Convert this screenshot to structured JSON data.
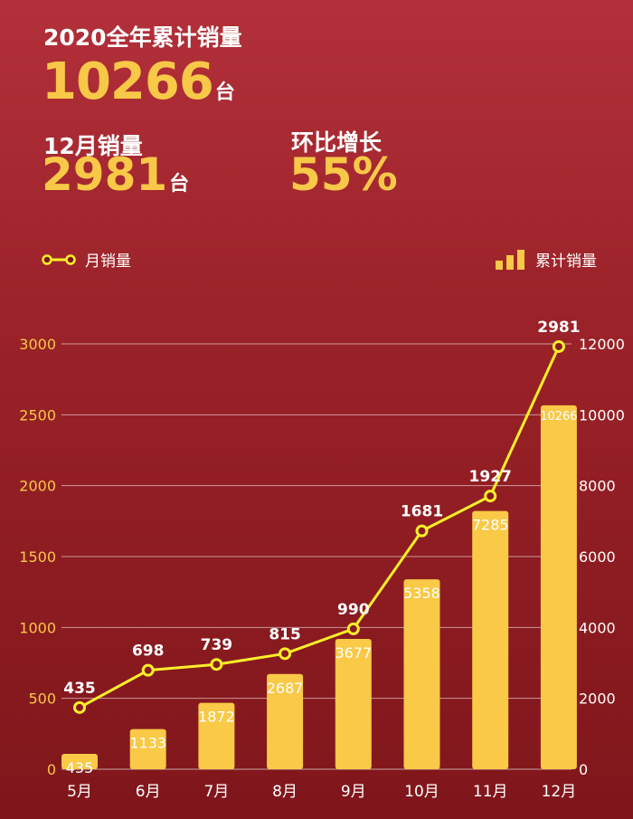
{
  "header": {
    "title": "2020全年累计销量",
    "total_value": "10266",
    "unit": "台",
    "dec_label": "12月销量",
    "dec_value": "2981",
    "mom_label": "环比增长",
    "mom_value": "55%"
  },
  "legend": {
    "line_label": "月销量",
    "bar_label": "累计销量"
  },
  "colors": {
    "bar": "#f9c947",
    "line": "#ffef2a",
    "accent": "#f8c848",
    "bg_top": "#b3303a",
    "bg_bottom": "#7f161b"
  },
  "chart_data": {
    "type": "bar+line",
    "categories": [
      "5月",
      "6月",
      "7月",
      "8月",
      "9月",
      "10月",
      "11月",
      "12月"
    ],
    "series": [
      {
        "name": "月销量",
        "type": "line",
        "axis": "left",
        "values": [
          435,
          698,
          739,
          815,
          990,
          1681,
          1927,
          2981
        ]
      },
      {
        "name": "累计销量",
        "type": "bar",
        "axis": "right",
        "values": [
          435,
          1133,
          1872,
          2687,
          3677,
          5358,
          7285,
          10266
        ]
      }
    ],
    "y_left": {
      "ticks": [
        0,
        500,
        1000,
        1500,
        2000,
        2500,
        3000
      ],
      "range": [
        0,
        3000
      ]
    },
    "y_right": {
      "ticks": [
        0,
        2000,
        4000,
        6000,
        8000,
        10000,
        12000
      ],
      "range": [
        0,
        12000
      ]
    },
    "grid": true
  }
}
